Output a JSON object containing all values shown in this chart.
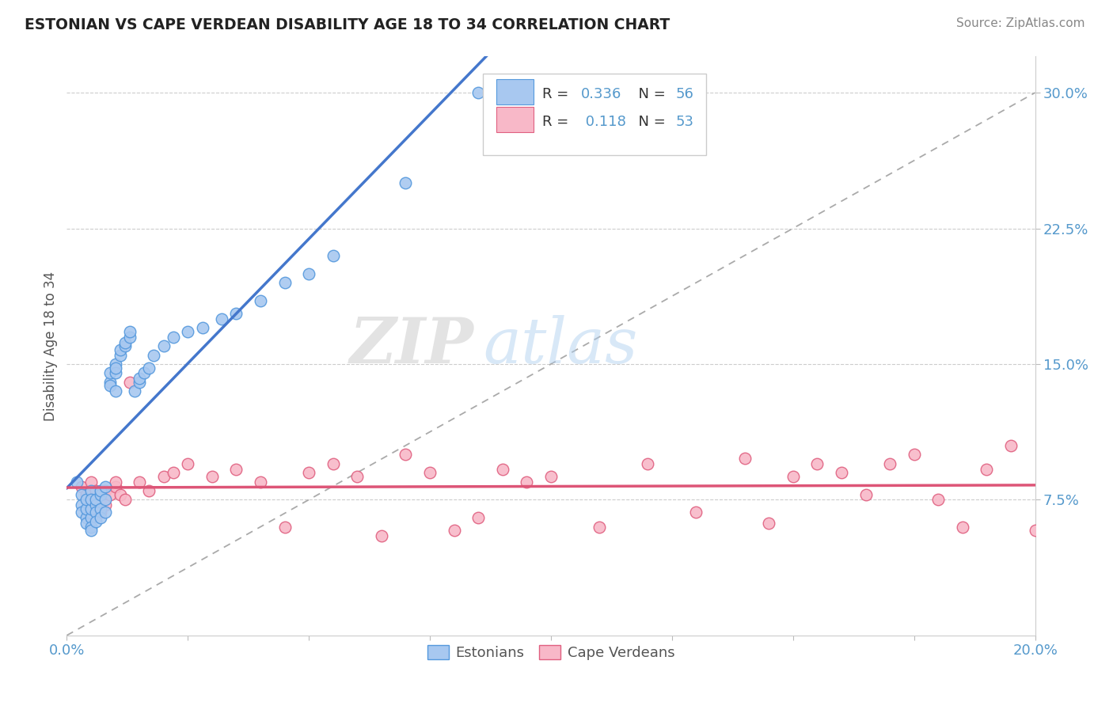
{
  "title": "ESTONIAN VS CAPE VERDEAN DISABILITY AGE 18 TO 34 CORRELATION CHART",
  "source": "Source: ZipAtlas.com",
  "ylabel": "Disability Age 18 to 34",
  "xlim": [
    0.0,
    0.2
  ],
  "ylim": [
    0.0,
    0.32
  ],
  "ytick_labels": [
    "7.5%",
    "15.0%",
    "22.5%",
    "30.0%"
  ],
  "ytick_values": [
    0.075,
    0.15,
    0.225,
    0.3
  ],
  "r_estonian": 0.336,
  "n_estonian": 56,
  "r_cape_verdean": 0.118,
  "n_cape_verdean": 53,
  "color_estonian_fill": "#a8c8f0",
  "color_estonian_edge": "#5599dd",
  "color_cape_fill": "#f8b8c8",
  "color_cape_edge": "#e06080",
  "color_estonian_line": "#4477cc",
  "color_cape_line": "#dd5577",
  "color_dashed": "#aaaaaa",
  "background_color": "#ffffff",
  "watermark_zip": "ZIP",
  "watermark_atlas": "atlas",
  "estonian_x": [
    0.002,
    0.003,
    0.003,
    0.003,
    0.004,
    0.004,
    0.004,
    0.004,
    0.005,
    0.005,
    0.005,
    0.005,
    0.005,
    0.005,
    0.006,
    0.006,
    0.006,
    0.006,
    0.007,
    0.007,
    0.007,
    0.007,
    0.008,
    0.008,
    0.008,
    0.009,
    0.009,
    0.009,
    0.01,
    0.01,
    0.01,
    0.01,
    0.011,
    0.011,
    0.012,
    0.012,
    0.013,
    0.013,
    0.014,
    0.015,
    0.015,
    0.016,
    0.017,
    0.018,
    0.02,
    0.022,
    0.025,
    0.028,
    0.032,
    0.035,
    0.04,
    0.045,
    0.05,
    0.055,
    0.07,
    0.085
  ],
  "estonian_y": [
    0.085,
    0.078,
    0.072,
    0.068,
    0.065,
    0.07,
    0.075,
    0.062,
    0.08,
    0.065,
    0.07,
    0.075,
    0.06,
    0.058,
    0.072,
    0.068,
    0.063,
    0.075,
    0.07,
    0.078,
    0.065,
    0.08,
    0.075,
    0.068,
    0.082,
    0.14,
    0.145,
    0.138,
    0.15,
    0.145,
    0.148,
    0.135,
    0.155,
    0.158,
    0.16,
    0.162,
    0.165,
    0.168,
    0.135,
    0.14,
    0.142,
    0.145,
    0.148,
    0.155,
    0.16,
    0.165,
    0.168,
    0.17,
    0.175,
    0.178,
    0.185,
    0.195,
    0.2,
    0.21,
    0.25,
    0.3
  ],
  "cape_verdean_x": [
    0.003,
    0.004,
    0.004,
    0.005,
    0.005,
    0.005,
    0.006,
    0.007,
    0.007,
    0.008,
    0.008,
    0.009,
    0.01,
    0.01,
    0.011,
    0.012,
    0.013,
    0.015,
    0.017,
    0.02,
    0.022,
    0.025,
    0.03,
    0.035,
    0.04,
    0.045,
    0.05,
    0.055,
    0.06,
    0.065,
    0.07,
    0.075,
    0.08,
    0.085,
    0.09,
    0.095,
    0.1,
    0.11,
    0.12,
    0.13,
    0.14,
    0.145,
    0.15,
    0.155,
    0.16,
    0.165,
    0.17,
    0.175,
    0.18,
    0.185,
    0.19,
    0.195,
    0.2
  ],
  "cape_verdean_y": [
    0.082,
    0.078,
    0.075,
    0.07,
    0.085,
    0.065,
    0.08,
    0.075,
    0.068,
    0.072,
    0.08,
    0.078,
    0.082,
    0.085,
    0.078,
    0.075,
    0.14,
    0.085,
    0.08,
    0.088,
    0.09,
    0.095,
    0.088,
    0.092,
    0.085,
    0.06,
    0.09,
    0.095,
    0.088,
    0.055,
    0.1,
    0.09,
    0.058,
    0.065,
    0.092,
    0.085,
    0.088,
    0.06,
    0.095,
    0.068,
    0.098,
    0.062,
    0.088,
    0.095,
    0.09,
    0.078,
    0.095,
    0.1,
    0.075,
    0.06,
    0.092,
    0.105,
    0.058
  ]
}
